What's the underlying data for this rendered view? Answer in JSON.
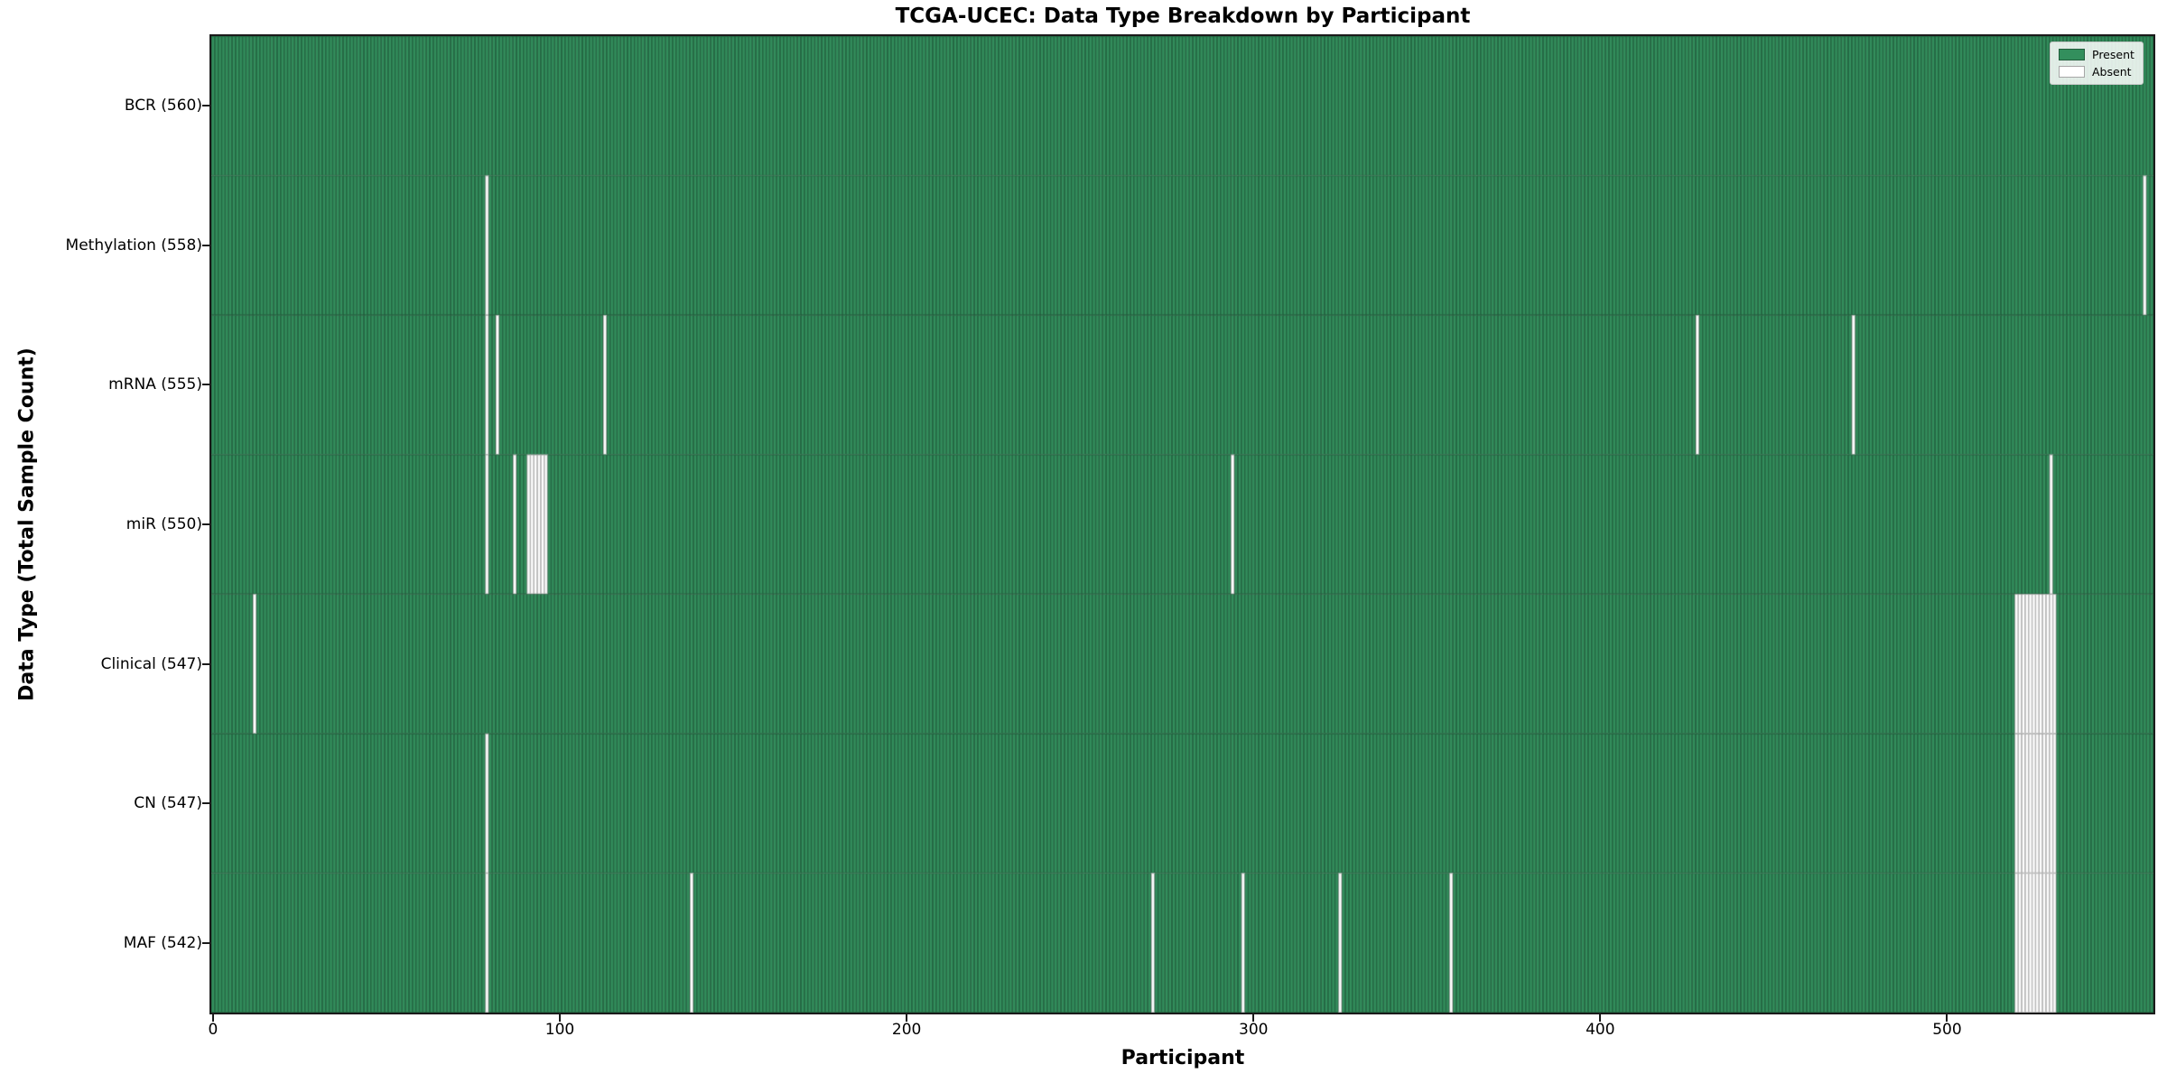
{
  "title": "TCGA-UCEC: Data Type Breakdown by Participant",
  "chart_data": {
    "type": "heatmap",
    "title": "TCGA-UCEC: Data Type Breakdown by Participant",
    "xlabel": "Participant",
    "ylabel": "Data Type (Total Sample Count)",
    "x_ticks": [
      0,
      100,
      200,
      300,
      400,
      500
    ],
    "x_range": [
      -0.5,
      559.5
    ],
    "n_participants": 560,
    "grid": false,
    "colors": {
      "present": "#338f5d",
      "absent": "#ffffff",
      "bar_edge": "rgba(0,0,0,0.38)",
      "spine": "#1a1a1a"
    },
    "legend": {
      "position": "upper right",
      "entries": [
        {
          "label": "Present",
          "color": "#338f5d"
        },
        {
          "label": "Absent",
          "color": "#ffffff"
        }
      ]
    },
    "rows": [
      {
        "label": "BCR",
        "count": 560,
        "display": "BCR (560)",
        "absent_participants": []
      },
      {
        "label": "Methylation",
        "count": 558,
        "display": "Methylation (558)",
        "absent_participants": [
          79,
          557
        ]
      },
      {
        "label": "mRNA",
        "count": 555,
        "display": "mRNA (555)",
        "absent_participants": [
          79,
          82,
          113,
          428,
          473
        ]
      },
      {
        "label": "miR",
        "count": 550,
        "display": "miR (550)",
        "absent_participants": [
          79,
          87,
          91,
          92,
          93,
          94,
          95,
          96,
          294,
          530
        ]
      },
      {
        "label": "Clinical",
        "count": 547,
        "display": "Clinical (547)",
        "absent_participants": [
          12,
          520,
          521,
          522,
          523,
          524,
          525,
          526,
          527,
          528,
          529,
          530,
          531
        ]
      },
      {
        "label": "CN",
        "count": 547,
        "display": "CN (547)",
        "absent_participants": [
          79,
          520,
          521,
          522,
          523,
          524,
          525,
          526,
          527,
          528,
          529,
          530,
          531
        ]
      },
      {
        "label": "MAF",
        "count": 542,
        "display": "MAF (542)",
        "absent_participants": [
          79,
          138,
          271,
          297,
          325,
          357,
          520,
          521,
          522,
          523,
          524,
          525,
          526,
          527,
          528,
          529,
          530,
          531
        ]
      }
    ]
  }
}
